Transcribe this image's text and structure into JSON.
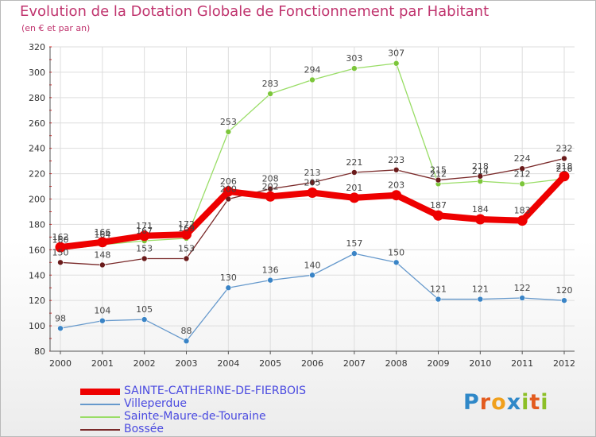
{
  "title": "Evolution de la Dotation Globale de Fonctionnement par Habitant",
  "subtitle": "(en € et par an)",
  "logo": {
    "text": "Proxiti",
    "letters": [
      {
        "ch": "P",
        "color": "#2f88c8"
      },
      {
        "ch": "r",
        "color": "#e35b1e"
      },
      {
        "ch": "o",
        "color": "#f0a01c"
      },
      {
        "ch": "x",
        "color": "#2f88c8"
      },
      {
        "ch": "i",
        "color": "#8cbf26"
      },
      {
        "ch": "t",
        "color": "#e35b1e"
      },
      {
        "ch": "i",
        "color": "#8cbf26"
      }
    ]
  },
  "chart_data": {
    "type": "line",
    "title": "Evolution de la Dotation Globale de Fonctionnement par Habitant",
    "subtitle": "(en € et par an)",
    "x": [
      2000,
      2001,
      2002,
      2003,
      2004,
      2005,
      2006,
      2007,
      2008,
      2009,
      2010,
      2011,
      2012
    ],
    "ylim": [
      80,
      320
    ],
    "yticks": [
      80,
      100,
      120,
      140,
      160,
      180,
      200,
      220,
      240,
      260,
      280,
      300,
      320
    ],
    "grid": true,
    "legend_position": "bottom-left",
    "series": [
      {
        "name": "SAINTE-CATHERINE-DE-FIERBOIS",
        "color": "#ee0000",
        "values": [
          162,
          166,
          171,
          172,
          206,
          202,
          205,
          201,
          203,
          187,
          184,
          183,
          218
        ]
      },
      {
        "name": "Villeperdue",
        "color": "#6699cc",
        "values": [
          98,
          104,
          105,
          88,
          130,
          136,
          140,
          157,
          150,
          121,
          121,
          122,
          120
        ]
      },
      {
        "name": "Sainte-Maure-de-Touraine",
        "color": "#99dd66",
        "values": [
          160,
          164,
          167,
          169,
          253,
          283,
          294,
          303,
          307,
          212,
          214,
          212,
          216
        ]
      },
      {
        "name": "Bossée",
        "color": "#7a2a2a",
        "values": [
          150,
          148,
          153,
          153,
          200,
          208,
          213,
          221,
          223,
          215,
          218,
          224,
          232
        ]
      }
    ]
  }
}
